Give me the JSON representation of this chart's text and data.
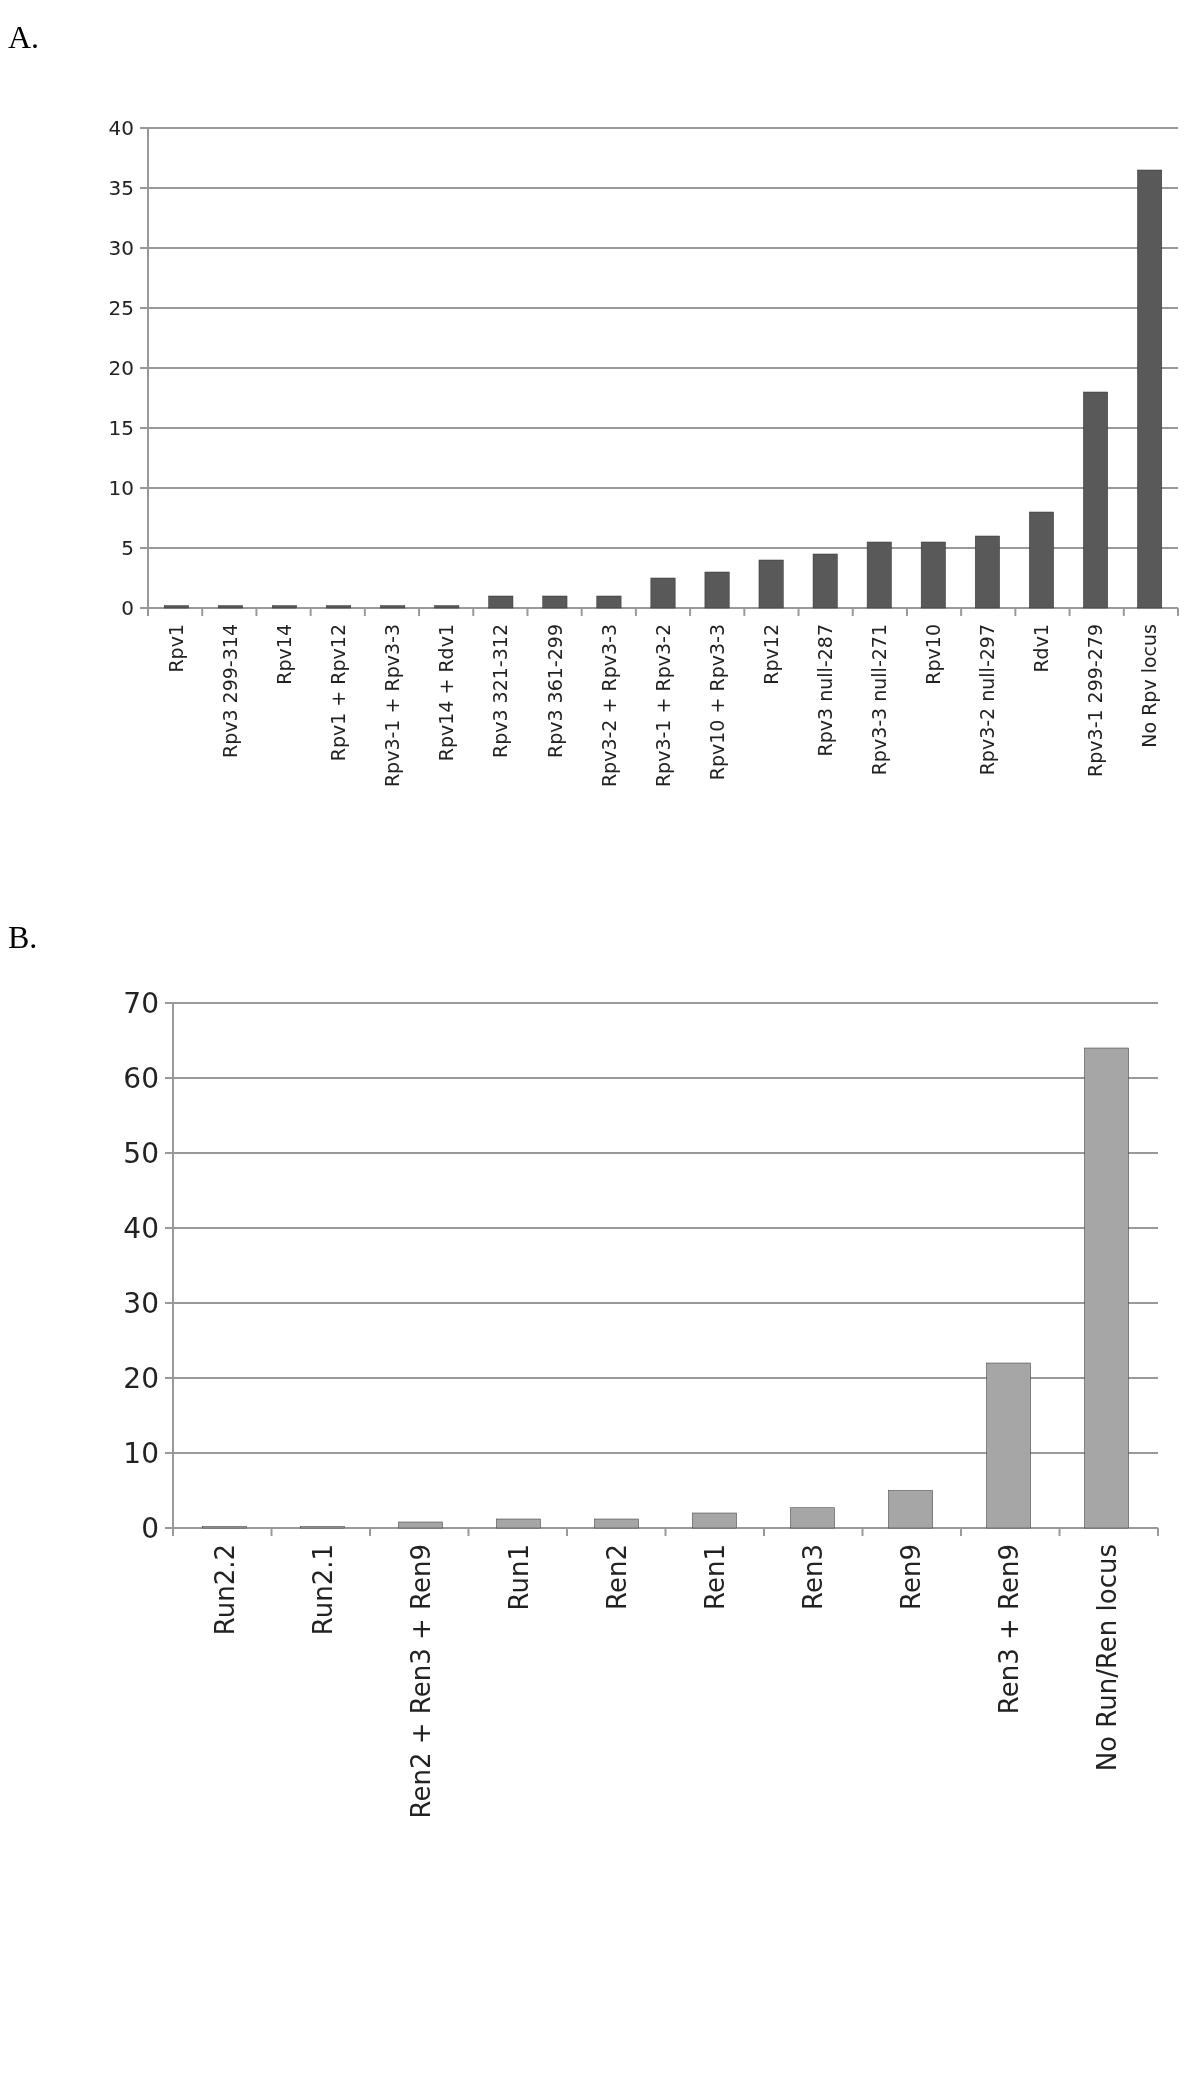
{
  "chart_data": [
    {
      "type": "bar",
      "title": "A.",
      "categories": [
        "Rpv1",
        "Rpv3 299-314",
        "Rpv14",
        "Rpv1 + Rpv12",
        "Rpv3-1 + Rpv3-3",
        "Rpv14 + Rdv1",
        "Rpv3 321-312",
        "Rpv3 361-299",
        "Rpv3-2 + Rpv3-3",
        "Rpv3-1 + Rpv3-2",
        "Rpv10 + Rpv3-3",
        "Rpv12",
        "Rpv3 null-287",
        "Rpv3-3 null-271",
        "Rpv10",
        "Rpv3-2 null-297",
        "Rdv1",
        "Rpv3-1 299-279",
        "No Rpv locus"
      ],
      "values": [
        0.2,
        0.2,
        0.2,
        0.2,
        0.2,
        0.2,
        1,
        1,
        1,
        2.5,
        3,
        4,
        4.5,
        5.5,
        5.5,
        6,
        8,
        18,
        36.5
      ],
      "color": "#595959",
      "ylim": [
        0,
        40
      ],
      "yticks": [
        0,
        5,
        10,
        15,
        20,
        25,
        30,
        35,
        40
      ],
      "grid": "y"
    },
    {
      "type": "bar",
      "title": "B.",
      "categories": [
        "Run2.2",
        "Run2.1",
        "Ren2 + Ren3 + Ren9",
        "Run1",
        "Ren2",
        "Ren1",
        "Ren3",
        "Ren9",
        "Ren3 + Ren9",
        "No Run/Ren locus"
      ],
      "values": [
        0.2,
        0.2,
        0.8,
        1.2,
        1.2,
        2,
        2.7,
        5,
        22,
        64
      ],
      "color": "#a6a6a6",
      "ylim": [
        0,
        70
      ],
      "yticks": [
        0,
        10,
        20,
        30,
        40,
        50,
        60,
        70
      ],
      "grid": "y"
    }
  ]
}
